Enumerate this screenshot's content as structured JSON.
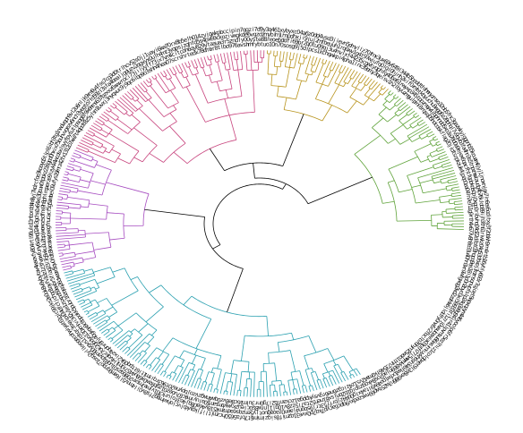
{
  "diagram": {
    "type": "circular-dendrogram",
    "root_color": "#000000",
    "label_color": "#111111",
    "gap_fraction": 0.16,
    "clades": [
      {
        "name": "",
        "color": "#2aa0b0",
        "leaves": 110
      },
      {
        "name": "",
        "color": "#a64cc0",
        "leaves": 44
      },
      {
        "name": "",
        "color": "#c8457e",
        "leaves": 70
      },
      {
        "name": "",
        "color": "#b8941e",
        "leaves": 40
      },
      {
        "name": "",
        "color": "#5fa33a",
        "leaves": 56
      }
    ]
  }
}
